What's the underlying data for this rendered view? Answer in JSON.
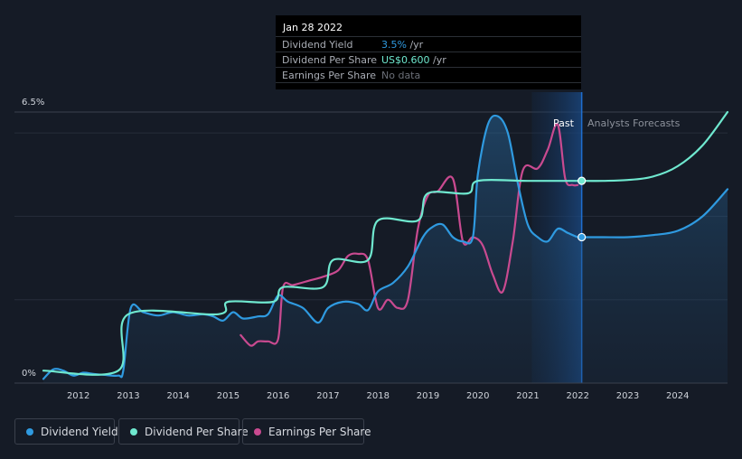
{
  "tooltip": {
    "date": "Jan 28 2022",
    "rows": [
      {
        "label": "Dividend Yield",
        "value": "3.5%",
        "unit": " /yr",
        "color": "#2f9ae0"
      },
      {
        "label": "Dividend Per Share",
        "value": "US$0.600",
        "unit": " /yr",
        "color": "#6fe8cf"
      },
      {
        "label": "Earnings Per Share",
        "value": "No data",
        "unit": "",
        "color": "#6b6f78"
      }
    ]
  },
  "regions": {
    "past_label": "Past",
    "forecast_label": "Analysts Forecasts"
  },
  "legend": [
    {
      "label": "Dividend Yield",
      "color": "#2f9ae0"
    },
    {
      "label": "Dividend Per Share",
      "color": "#6fe8cf"
    },
    {
      "label": "Earnings Per Share",
      "color": "#c94a90"
    }
  ],
  "chart_data": {
    "type": "line",
    "title": "",
    "xlabel": "",
    "ylabel": "",
    "y_tick_labels": [
      "6.5%",
      "0%"
    ],
    "ylim": [
      0,
      6.5
    ],
    "xlim": [
      2011.3,
      2025.0
    ],
    "x_ticks": [
      2012,
      2013,
      2014,
      2015,
      2016,
      2017,
      2018,
      2019,
      2020,
      2021,
      2022,
      2023,
      2024
    ],
    "past_end": 2022.08,
    "highlight_start": 2021.08,
    "series": [
      {
        "name": "Dividend Yield",
        "color": "#2f9ae0",
        "points": [
          [
            2011.3,
            0.1
          ],
          [
            2011.5,
            0.33
          ],
          [
            2011.7,
            0.3
          ],
          [
            2011.9,
            0.18
          ],
          [
            2012.1,
            0.25
          ],
          [
            2012.3,
            0.22
          ],
          [
            2012.5,
            0.2
          ],
          [
            2012.8,
            0.18
          ],
          [
            2012.9,
            0.3
          ],
          [
            2013.05,
            1.8
          ],
          [
            2013.3,
            1.7
          ],
          [
            2013.6,
            1.62
          ],
          [
            2013.9,
            1.7
          ],
          [
            2014.2,
            1.62
          ],
          [
            2014.5,
            1.65
          ],
          [
            2014.7,
            1.6
          ],
          [
            2014.9,
            1.5
          ],
          [
            2015.1,
            1.7
          ],
          [
            2015.3,
            1.55
          ],
          [
            2015.6,
            1.6
          ],
          [
            2015.8,
            1.65
          ],
          [
            2016.0,
            2.1
          ],
          [
            2016.2,
            1.95
          ],
          [
            2016.5,
            1.8
          ],
          [
            2016.8,
            1.45
          ],
          [
            2017.0,
            1.8
          ],
          [
            2017.3,
            1.95
          ],
          [
            2017.6,
            1.9
          ],
          [
            2017.8,
            1.75
          ],
          [
            2018.0,
            2.2
          ],
          [
            2018.3,
            2.4
          ],
          [
            2018.6,
            2.8
          ],
          [
            2018.9,
            3.5
          ],
          [
            2019.1,
            3.75
          ],
          [
            2019.3,
            3.8
          ],
          [
            2019.5,
            3.5
          ],
          [
            2019.7,
            3.4
          ],
          [
            2019.9,
            3.5
          ],
          [
            2020.0,
            5.0
          ],
          [
            2020.2,
            6.2
          ],
          [
            2020.4,
            6.4
          ],
          [
            2020.6,
            6.0
          ],
          [
            2020.8,
            4.8
          ],
          [
            2021.0,
            3.8
          ],
          [
            2021.2,
            3.5
          ],
          [
            2021.4,
            3.4
          ],
          [
            2021.6,
            3.7
          ],
          [
            2021.8,
            3.6
          ],
          [
            2022.0,
            3.5
          ],
          [
            2022.08,
            3.5
          ],
          [
            2022.5,
            3.5
          ],
          [
            2023.0,
            3.5
          ],
          [
            2023.5,
            3.55
          ],
          [
            2024.0,
            3.65
          ],
          [
            2024.5,
            4.0
          ],
          [
            2025.0,
            4.65
          ]
        ]
      },
      {
        "name": "Dividend Per Share",
        "color": "#6fe8cf",
        "points": [
          [
            2011.3,
            0.3
          ],
          [
            2012.8,
            0.3
          ],
          [
            2013.0,
            1.65
          ],
          [
            2014.8,
            1.65
          ],
          [
            2015.0,
            1.95
          ],
          [
            2015.9,
            1.95
          ],
          [
            2016.1,
            2.3
          ],
          [
            2016.9,
            2.3
          ],
          [
            2017.1,
            2.95
          ],
          [
            2017.8,
            2.95
          ],
          [
            2018.0,
            3.9
          ],
          [
            2018.8,
            3.9
          ],
          [
            2019.0,
            4.55
          ],
          [
            2019.8,
            4.55
          ],
          [
            2020.0,
            4.85
          ],
          [
            2021.0,
            4.85
          ],
          [
            2022.08,
            4.85
          ],
          [
            2022.5,
            4.85
          ],
          [
            2023.0,
            4.87
          ],
          [
            2023.5,
            4.95
          ],
          [
            2024.0,
            5.2
          ],
          [
            2024.5,
            5.7
          ],
          [
            2025.0,
            6.5
          ]
        ]
      },
      {
        "name": "Earnings Per Share",
        "color": "#c94a90",
        "points": [
          [
            2015.25,
            1.15
          ],
          [
            2015.45,
            0.9
          ],
          [
            2015.6,
            1.0
          ],
          [
            2015.8,
            1.0
          ],
          [
            2016.0,
            1.05
          ],
          [
            2016.1,
            2.3
          ],
          [
            2016.3,
            2.35
          ],
          [
            2016.6,
            2.45
          ],
          [
            2016.9,
            2.55
          ],
          [
            2017.2,
            2.7
          ],
          [
            2017.4,
            3.05
          ],
          [
            2017.6,
            3.1
          ],
          [
            2017.8,
            2.95
          ],
          [
            2018.0,
            1.8
          ],
          [
            2018.2,
            2.0
          ],
          [
            2018.4,
            1.8
          ],
          [
            2018.6,
            2.0
          ],
          [
            2018.8,
            3.7
          ],
          [
            2019.0,
            4.5
          ],
          [
            2019.2,
            4.6
          ],
          [
            2019.5,
            4.9
          ],
          [
            2019.7,
            3.4
          ],
          [
            2019.9,
            3.5
          ],
          [
            2020.1,
            3.3
          ],
          [
            2020.3,
            2.6
          ],
          [
            2020.5,
            2.2
          ],
          [
            2020.7,
            3.4
          ],
          [
            2020.9,
            5.1
          ],
          [
            2021.2,
            5.15
          ],
          [
            2021.4,
            5.6
          ],
          [
            2021.6,
            6.2
          ],
          [
            2021.75,
            4.9
          ],
          [
            2021.9,
            4.75
          ],
          [
            2022.0,
            4.75
          ]
        ]
      }
    ],
    "markers": [
      {
        "series": "Dividend Per Share",
        "x": 2022.08,
        "y": 4.85
      },
      {
        "series": "Dividend Yield",
        "x": 2022.08,
        "y": 3.5
      }
    ]
  }
}
